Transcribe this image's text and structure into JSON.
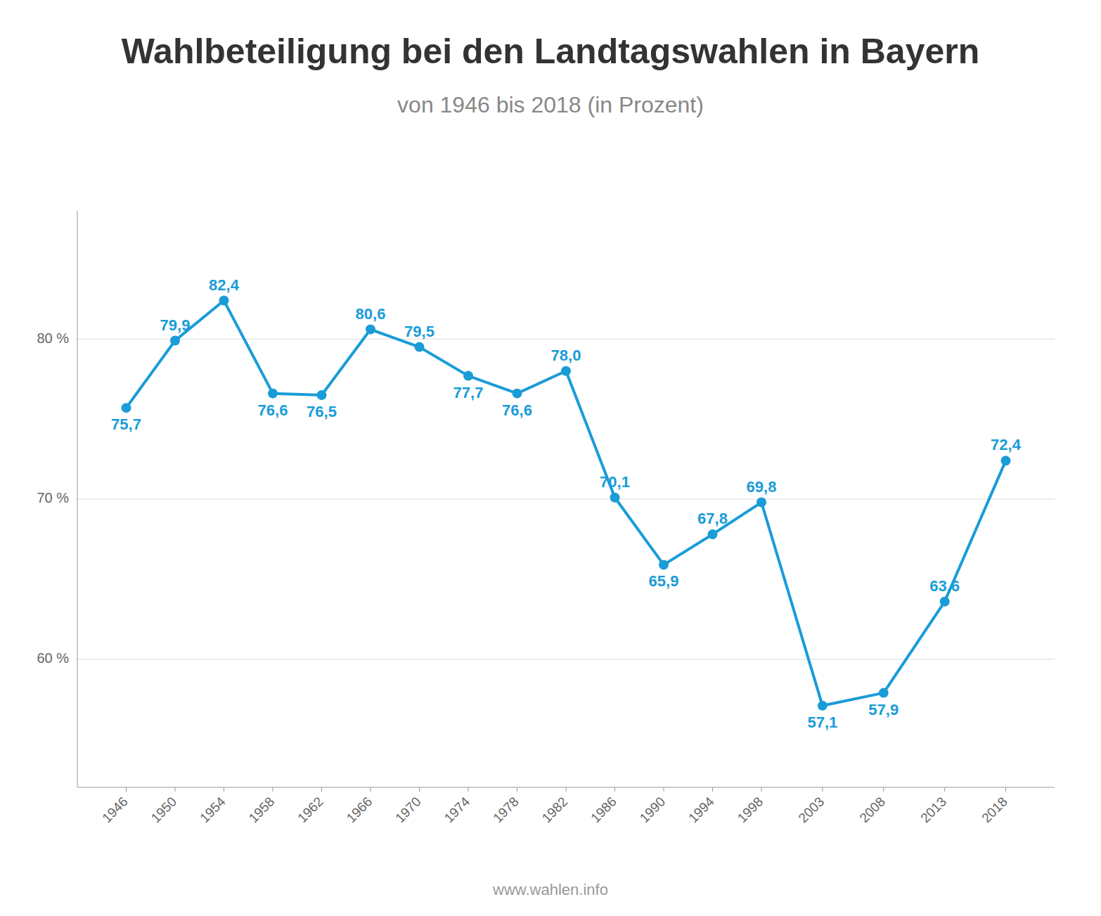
{
  "chart_data": {
    "type": "line",
    "title": "Wahlbeteiligung bei den Landtagswahlen in Bayern",
    "subtitle": "von 1946 bis 2018 (in Prozent)",
    "footer": "www.wahlen.info",
    "x": [
      1946,
      1950,
      1954,
      1958,
      1962,
      1966,
      1970,
      1974,
      1978,
      1982,
      1986,
      1990,
      1994,
      1998,
      2003,
      2008,
      2013,
      2018
    ],
    "values": [
      75.7,
      79.9,
      82.4,
      76.6,
      76.5,
      80.6,
      79.5,
      77.7,
      76.6,
      78.0,
      70.1,
      65.9,
      67.8,
      69.8,
      57.1,
      57.9,
      63.6,
      72.4
    ],
    "value_labels": [
      "75,7",
      "79,9",
      "82,4",
      "76,6",
      "76,5",
      "80,6",
      "79,5",
      "77,7",
      "76,6",
      "78,0",
      "70,1",
      "65,9",
      "67,8",
      "69,8",
      "57,1",
      "57,9",
      "63,6",
      "72,4"
    ],
    "data_labels": true,
    "color": "#1a9cd8",
    "marker": "circle",
    "xlim": [
      1942,
      2022
    ],
    "xticks": [
      1946,
      1950,
      1954,
      1958,
      1962,
      1966,
      1970,
      1974,
      1978,
      1982,
      1986,
      1990,
      1994,
      1998,
      2003,
      2008,
      2013,
      2018
    ],
    "ylim": [
      52,
      88
    ],
    "yticks": [
      {
        "value": 60,
        "label": "60 %"
      },
      {
        "value": 70,
        "label": "70 %"
      },
      {
        "value": 80,
        "label": "80 %"
      }
    ],
    "grid": true
  }
}
